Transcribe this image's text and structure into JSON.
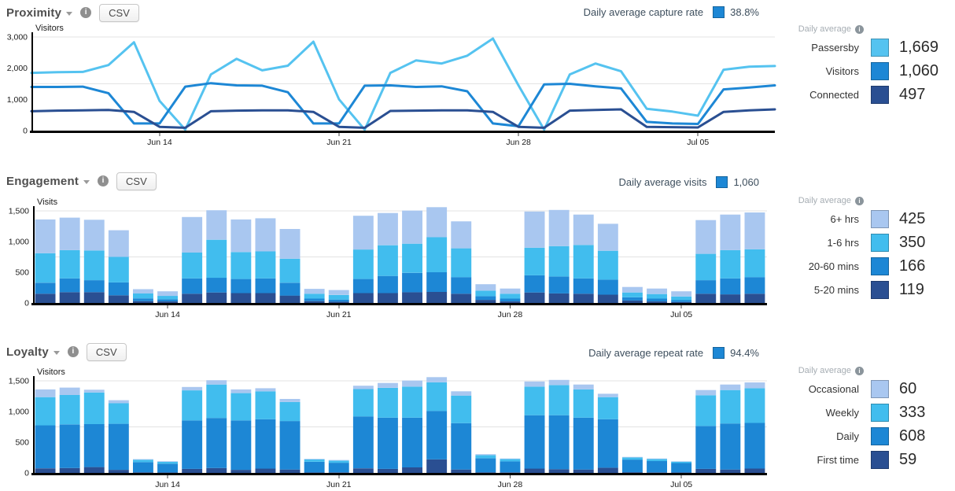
{
  "sections": [
    {
      "title": "Proximity",
      "csv": "CSV",
      "stat": {
        "label": "Daily average capture rate",
        "value": "38.8%",
        "swatch_color": "#1d87d5"
      },
      "legend": {
        "heading": "Daily average",
        "items": [
          {
            "label": "Passersby",
            "value": "1,669",
            "color": "#55c3f0"
          },
          {
            "label": "Visitors",
            "value": "1,060",
            "color": "#1d87d5"
          },
          {
            "label": "Connected",
            "value": "497",
            "color": "#2a4f92"
          }
        ]
      }
    },
    {
      "title": "Engagement",
      "csv": "CSV",
      "stat": {
        "label": "Daily average visits",
        "value": "1,060",
        "swatch_color": "#1d87d5"
      },
      "legend": {
        "heading": "Daily average",
        "items": [
          {
            "label": "6+ hrs",
            "value": "425",
            "color": "#a9c7f0"
          },
          {
            "label": "1-6 hrs",
            "value": "350",
            "color": "#41bdee"
          },
          {
            "label": "20-60 mins",
            "value": "166",
            "color": "#1d87d5"
          },
          {
            "label": "5-20 mins",
            "value": "119",
            "color": "#2a4f92"
          }
        ]
      }
    },
    {
      "title": "Loyalty",
      "csv": "CSV",
      "stat": {
        "label": "Daily average repeat rate",
        "value": "94.4%",
        "swatch_color": "#1d87d5"
      },
      "legend": {
        "heading": "Daily average",
        "items": [
          {
            "label": "Occasional",
            "value": "60",
            "color": "#a9c7f0"
          },
          {
            "label": "Weekly",
            "value": "333",
            "color": "#41bdee"
          },
          {
            "label": "Daily",
            "value": "608",
            "color": "#1d87d5"
          },
          {
            "label": "First time",
            "value": "59",
            "color": "#2a4f92"
          }
        ]
      }
    }
  ],
  "chart_data": [
    {
      "type": "line",
      "title": "Proximity",
      "ylabel": "Visitors",
      "ylim": [
        0,
        3000
      ],
      "grid": "sparse",
      "legend_position": "right",
      "y_ticks": [
        {
          "v": 0,
          "label": "0"
        },
        {
          "v": 1000,
          "label": "1,000"
        },
        {
          "v": 2000,
          "label": "2,000"
        },
        {
          "v": 3000,
          "label": "3,000"
        }
      ],
      "gridlines": [
        1500,
        3000
      ],
      "categories": [
        "Jun 9",
        "Jun 10",
        "Jun 11",
        "Jun 12",
        "Jun 13",
        "Jun 14",
        "Jun 15",
        "Jun 16",
        "Jun 17",
        "Jun 18",
        "Jun 19",
        "Jun 20",
        "Jun 21",
        "Jun 22",
        "Jun 23",
        "Jun 24",
        "Jun 25",
        "Jun 26",
        "Jun 27",
        "Jun 28",
        "Jun 29",
        "Jun 30",
        "Jul 1",
        "Jul 2",
        "Jul 3",
        "Jul 4",
        "Jul 5",
        "Jul 6",
        "Jul 7",
        "Jul 8"
      ],
      "x_ticks": [
        {
          "i": 5,
          "label": "Jun 14"
        },
        {
          "i": 12,
          "label": "Jun 21"
        },
        {
          "i": 19,
          "label": "Jun 28"
        },
        {
          "i": 26,
          "label": "Jul 05"
        }
      ],
      "series": [
        {
          "name": "Passersby",
          "color": "#55c3f0",
          "values": [
            1850,
            1870,
            1880,
            2100,
            2830,
            950,
            30,
            1800,
            2300,
            1930,
            2080,
            2850,
            1000,
            30,
            1850,
            2250,
            2150,
            2400,
            2950,
            1450,
            30,
            1800,
            2150,
            1900,
            700,
            610,
            480,
            1950,
            2050,
            2070
          ]
        },
        {
          "name": "Visitors",
          "color": "#1d87d5",
          "values": [
            1400,
            1400,
            1410,
            1200,
            230,
            230,
            1410,
            1520,
            1450,
            1440,
            1230,
            230,
            230,
            1440,
            1450,
            1400,
            1420,
            1260,
            230,
            140,
            1480,
            1500,
            1420,
            1350,
            280,
            230,
            215,
            1320,
            1380,
            1450
          ]
        },
        {
          "name": "Connected",
          "color": "#2a4f92",
          "values": [
            620,
            640,
            650,
            660,
            600,
            120,
            90,
            620,
            640,
            650,
            650,
            600,
            120,
            90,
            630,
            640,
            650,
            650,
            600,
            120,
            90,
            640,
            660,
            680,
            120,
            110,
            100,
            600,
            650,
            680
          ]
        }
      ]
    },
    {
      "type": "bar",
      "stacked": true,
      "title": "Engagement",
      "ylabel": "Visits",
      "ylim": [
        0,
        1500
      ],
      "grid": "sparse",
      "legend_position": "right",
      "y_ticks": [
        {
          "v": 0,
          "label": "0"
        },
        {
          "v": 500,
          "label": "500"
        },
        {
          "v": 1000,
          "label": "1,000"
        },
        {
          "v": 1500,
          "label": "1,500"
        }
      ],
      "gridlines": [
        750,
        1500
      ],
      "categories": [
        "Jun 9",
        "Jun 10",
        "Jun 11",
        "Jun 12",
        "Jun 13",
        "Jun 14",
        "Jun 15",
        "Jun 16",
        "Jun 17",
        "Jun 18",
        "Jun 19",
        "Jun 20",
        "Jun 21",
        "Jun 22",
        "Jun 23",
        "Jun 24",
        "Jun 25",
        "Jun 26",
        "Jun 27",
        "Jun 28",
        "Jun 29",
        "Jun 30",
        "Jul 1",
        "Jul 2",
        "Jul 3",
        "Jul 4",
        "Jul 5",
        "Jul 6",
        "Jul 7",
        "Jul 8"
      ],
      "x_ticks": [
        {
          "i": 5,
          "label": "Jun 14"
        },
        {
          "i": 12,
          "label": "Jun 21"
        },
        {
          "i": 19,
          "label": "Jun 28"
        },
        {
          "i": 26,
          "label": "Jul 05"
        }
      ],
      "series": [
        {
          "name": "5-20 mins",
          "color": "#2a4f92",
          "values": [
            150,
            175,
            175,
            125,
            30,
            25,
            150,
            170,
            160,
            160,
            120,
            30,
            20,
            160,
            160,
            175,
            180,
            150,
            50,
            25,
            170,
            155,
            150,
            135,
            40,
            25,
            15,
            150,
            140,
            150
          ]
        },
        {
          "name": "20-60 mins",
          "color": "#1d87d5",
          "values": [
            180,
            225,
            195,
            210,
            45,
            35,
            250,
            240,
            230,
            240,
            210,
            40,
            35,
            230,
            280,
            315,
            320,
            270,
            60,
            45,
            280,
            275,
            250,
            245,
            50,
            45,
            30,
            220,
            260,
            270
          ]
        },
        {
          "name": "1-6 hrs",
          "color": "#41bdee",
          "values": [
            480,
            460,
            485,
            415,
            80,
            55,
            420,
            620,
            440,
            440,
            390,
            80,
            75,
            480,
            500,
            475,
            570,
            470,
            90,
            80,
            450,
            495,
            545,
            470,
            80,
            75,
            60,
            430,
            460,
            455
          ]
        },
        {
          "name": "6+ hrs",
          "color": "#a9c7f0",
          "values": [
            550,
            530,
            500,
            435,
            70,
            75,
            580,
            480,
            530,
            540,
            485,
            80,
            80,
            550,
            525,
            540,
            490,
            440,
            105,
            85,
            590,
            590,
            495,
            440,
            90,
            90,
            85,
            550,
            580,
            600
          ]
        }
      ]
    },
    {
      "type": "bar",
      "stacked": true,
      "title": "Loyalty",
      "ylabel": "Visitors",
      "ylim": [
        0,
        1500
      ],
      "grid": "sparse",
      "legend_position": "right",
      "y_ticks": [
        {
          "v": 0,
          "label": "0"
        },
        {
          "v": 500,
          "label": "500"
        },
        {
          "v": 1000,
          "label": "1,000"
        },
        {
          "v": 1500,
          "label": "1,500"
        }
      ],
      "gridlines": [
        750,
        1500
      ],
      "categories": [
        "Jun 9",
        "Jun 10",
        "Jun 11",
        "Jun 12",
        "Jun 13",
        "Jun 14",
        "Jun 15",
        "Jun 16",
        "Jun 17",
        "Jun 18",
        "Jun 19",
        "Jun 20",
        "Jun 21",
        "Jun 22",
        "Jun 23",
        "Jun 24",
        "Jun 25",
        "Jun 26",
        "Jun 27",
        "Jun 28",
        "Jun 29",
        "Jun 30",
        "Jul 1",
        "Jul 2",
        "Jul 3",
        "Jul 4",
        "Jul 5",
        "Jul 6",
        "Jul 7",
        "Jul 8"
      ],
      "x_ticks": [
        {
          "i": 5,
          "label": "Jun 14"
        },
        {
          "i": 12,
          "label": "Jun 21"
        },
        {
          "i": 19,
          "label": "Jun 28"
        },
        {
          "i": 26,
          "label": "Jul 05"
        }
      ],
      "series": [
        {
          "name": "First time",
          "color": "#2a4f92",
          "values": [
            75,
            80,
            95,
            50,
            10,
            8,
            65,
            80,
            50,
            70,
            55,
            8,
            8,
            75,
            65,
            90,
            220,
            55,
            10,
            8,
            70,
            60,
            55,
            85,
            12,
            8,
            8,
            65,
            55,
            70
          ]
        },
        {
          "name": "Daily",
          "color": "#1d87d5",
          "values": [
            700,
            710,
            700,
            750,
            165,
            142,
            790,
            815,
            805,
            805,
            790,
            172,
            157,
            845,
            835,
            810,
            790,
            755,
            230,
            180,
            870,
            880,
            845,
            790,
            205,
            185,
            152,
            700,
            750,
            745
          ]
        },
        {
          "name": "Weekly",
          "color": "#41bdee",
          "values": [
            460,
            480,
            515,
            335,
            40,
            30,
            490,
            545,
            445,
            455,
            310,
            40,
            35,
            445,
            485,
            505,
            465,
            450,
            50,
            37,
            465,
            490,
            460,
            360,
            33,
            32,
            22,
            500,
            545,
            565
          ]
        },
        {
          "name": "Occasional",
          "color": "#a9c7f0",
          "values": [
            125,
            120,
            45,
            50,
            10,
            10,
            55,
            70,
            60,
            50,
            50,
            10,
            10,
            55,
            80,
            100,
            85,
            70,
            15,
            10,
            85,
            85,
            80,
            55,
            10,
            10,
            8,
            85,
            90,
            95
          ]
        }
      ]
    }
  ]
}
